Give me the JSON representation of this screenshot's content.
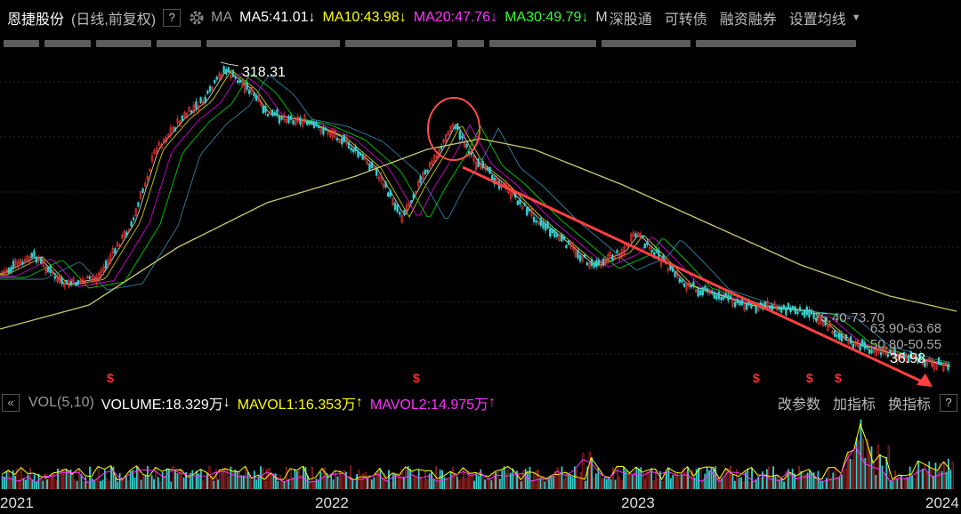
{
  "header": {
    "stock_name": "恩捷股份",
    "period_mode": "(日线,前复权)",
    "help_label": "?",
    "ma_label": "MA",
    "ma5": "MA5:41.01",
    "ma5_arrow": "↓",
    "ma10": "MA10:43.98",
    "ma10_arrow": "↓",
    "ma20": "MA20:47.76",
    "ma20_arrow": "↓",
    "ma30": "MA30:49.79",
    "ma30_arrow": "↓",
    "ma_more": "M",
    "links": [
      "深股通",
      "可转债",
      "融资融券",
      "设置均线"
    ],
    "dropdown_icon": "caret-down-icon",
    "settings_icon": "gear-icon"
  },
  "price_chart": {
    "high_label": "318.31",
    "low_label": "36.98",
    "range_labels": [
      "75.40-73.70",
      "63.90-63.68",
      "50.80-50.55"
    ],
    "event_marker": "$",
    "event_count": 6,
    "circle_annotation": "ellipse-annotation",
    "trend_arrow": "red-downtrend-arrow"
  },
  "volume_bar": {
    "collapse_icon": "double-chevron-left-icon",
    "vol_label": "VOL(5,10)",
    "volume": "VOLUME:18.329万",
    "volume_arrow": "↓",
    "mavol1": "MAVOL1:16.353万",
    "mavol1_arrow": "↑",
    "mavol2": "MAVOL2:14.975万",
    "mavol2_arrow": "↑",
    "buttons": [
      "改参数",
      "加指标",
      "换指标"
    ],
    "help_label": "?"
  },
  "x_axis": {
    "years": [
      "2021",
      "2022",
      "2023",
      "2024"
    ]
  },
  "colors": {
    "background": "#000000",
    "ma5": "#ffffff",
    "ma10": "#ffff00",
    "ma20": "#ff00ff",
    "ma30": "#00ff00",
    "up": "#ff3b3b",
    "down": "#36d1d1",
    "annotation": "#ff4d4d",
    "long_ma": "#c8c870"
  }
}
